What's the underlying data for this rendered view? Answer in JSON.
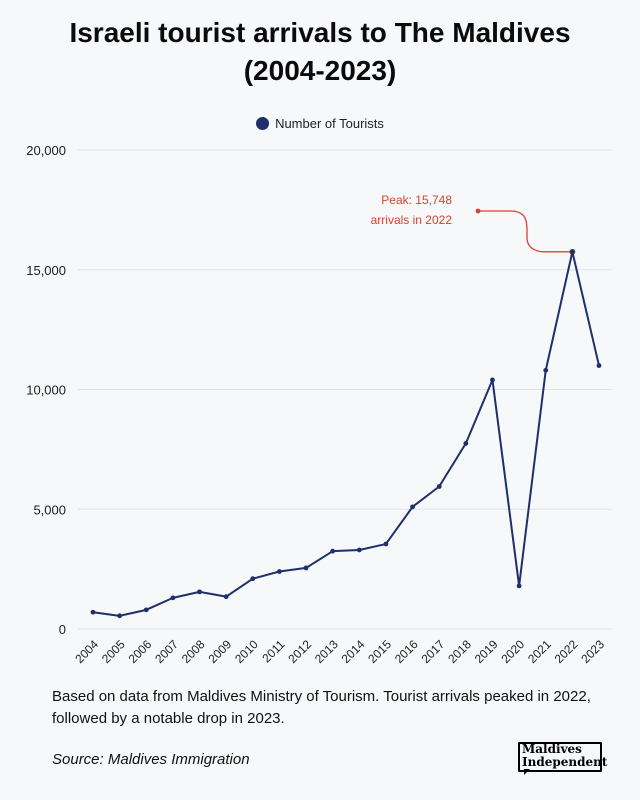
{
  "header": {
    "title_line1": "Israeli tourist arrivals to The Maldives",
    "title_line2": "(2004-2023)"
  },
  "legend": {
    "label": "Number of Tourists"
  },
  "colors": {
    "series": "#1e2f6b",
    "accent": "#d8432e",
    "grid": "#e1e3e8"
  },
  "chart_data": {
    "type": "line",
    "title": "Israeli tourist arrivals to The Maldives (2004-2023)",
    "xlabel": "",
    "ylabel": "",
    "ylim": [
      0,
      20000
    ],
    "yticks": [
      "0",
      "5,000",
      "10,000",
      "15,000",
      "20,000"
    ],
    "ytick_values": [
      0,
      5000,
      10000,
      15000,
      20000
    ],
    "grid": true,
    "legend_position": "top-center",
    "x": [
      "2004",
      "2005",
      "2006",
      "2007",
      "2008",
      "2009",
      "2010",
      "2011",
      "2012",
      "2013",
      "2014",
      "2015",
      "2016",
      "2017",
      "2018",
      "2019",
      "2020",
      "2021",
      "2022",
      "2023"
    ],
    "series": [
      {
        "name": "Number of Tourists",
        "values": [
          700,
          550,
          800,
          1300,
          1550,
          1350,
          2100,
          2400,
          2550,
          3250,
          3300,
          3550,
          5100,
          5950,
          7750,
          10400,
          1800,
          10800,
          15748,
          11000
        ]
      }
    ],
    "annotation": {
      "line1": "Peak: 15,748",
      "line2": "arrivals in 2022",
      "x": "2022",
      "y": 15748
    }
  },
  "footer": {
    "note": "Based on data from Maldives Ministry of Tourism. Tourist arrivals peaked in 2022, followed by a notable drop in 2023.",
    "source": "Source: Maldives Immigration",
    "logo_line1": "Maldives",
    "logo_line2": "Independent"
  }
}
